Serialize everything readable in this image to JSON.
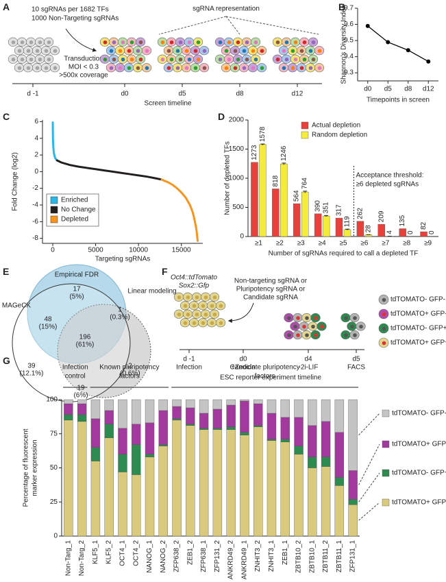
{
  "panel_labels": [
    "A",
    "B",
    "C",
    "D",
    "E",
    "F",
    "G"
  ],
  "screen_diagram": {
    "library": [
      "10 sgRNAs per 1682 TFs",
      "1000 Non-Targeting sgRNAs"
    ],
    "transduction": [
      "Transduction",
      "MOI < 0.3",
      ">500x coverage"
    ],
    "representation": "sgRNA representation",
    "timepoints": [
      "d -1",
      "d0",
      "d5",
      "d8",
      "d12"
    ],
    "timeline": "Screen timeline"
  },
  "venn": {
    "sets": [
      "Empirical FDR",
      "MAGeCK",
      "Linear modeling"
    ],
    "regions": [
      [
        "17",
        "(5%)"
      ],
      [
        "48",
        "(15%)"
      ],
      [
        "1",
        "(0.3%)"
      ],
      [
        "196",
        "(61%)"
      ],
      [
        "39",
        "(12.1%)"
      ],
      [
        "2",
        "(0.6%)"
      ],
      [
        "19",
        "(6%)"
      ]
    ]
  },
  "reporter_diagram": {
    "lines": [
      "Oct4::tdTomato",
      "Sox2::Gfp"
    ],
    "sgrnas": [
      "Non-targeting sgRNA or",
      "Pluripotency sgRNA or",
      "Candidate sgRNA"
    ],
    "timepoints": [
      [
        "d -1",
        "Infection"
      ],
      [
        "d0",
        "+Zeocin"
      ],
      [
        "d4",
        "-2i-LIF"
      ],
      [
        "d5",
        "FACS"
      ]
    ],
    "timeline": "ESC reporter experiment timeline",
    "legend": [
      {
        "name": "tdTOMATO- GFP-",
        "color": "#b3b3b3"
      },
      {
        "name": "tdTOMATO+ GFP-",
        "color": "#b04dac"
      },
      {
        "name": "tdTOMATO- GFP+",
        "color": "#2e8b4f"
      },
      {
        "name": "tdTOMATO+ GFP+",
        "color": "#e3d68e"
      }
    ]
  },
  "chart_data": [
    {
      "type": "line",
      "xlabel": "Timepoints in screen",
      "ylabel": "Shannon's Diversity Index",
      "categories": [
        "d0",
        "d5",
        "d8",
        "d12"
      ],
      "values": [
        9.59,
        9.49,
        9.44,
        9.37
      ],
      "color": "#000000",
      "ylim": [
        9.25,
        9.7
      ],
      "yticks": [
        9.3,
        9.4,
        9.5,
        9.6,
        9.7
      ]
    },
    {
      "type": "line",
      "xlabel": "Targeting sgRNAs",
      "ylabel": "Fold Change (log2)",
      "series": [
        {
          "name": "Enriched",
          "color": "#29b6e8",
          "x": [
            0,
            20,
            60,
            120,
            200,
            300,
            400,
            500
          ],
          "values": [
            5.9,
            4.0,
            3.0,
            2.3,
            1.9,
            1.6,
            1.45,
            1.35
          ]
        },
        {
          "name": "No Change",
          "color": "#231f20",
          "x": [
            500,
            1000,
            2000,
            3000,
            4000,
            5000,
            6000,
            7000,
            8000,
            9000,
            10000,
            11000,
            12000,
            12700
          ],
          "values": [
            1.35,
            1.1,
            0.8,
            0.6,
            0.45,
            0.3,
            0.15,
            0.0,
            -0.15,
            -0.3,
            -0.45,
            -0.6,
            -0.8,
            -0.95
          ]
        },
        {
          "name": "Depleted",
          "color": "#f7941d",
          "x": [
            12700,
            13500,
            14000,
            14500,
            15000,
            15500,
            16000,
            16300,
            16500,
            16700,
            16800,
            16900
          ],
          "values": [
            -0.95,
            -1.3,
            -1.6,
            -2.0,
            -2.5,
            -3.1,
            -4.0,
            -4.8,
            -5.6,
            -6.6,
            -7.3,
            -8.3
          ]
        }
      ],
      "xlim": [
        -1200,
        17500
      ],
      "xticks": [
        0,
        5000,
        10000,
        15000
      ],
      "ylim": [
        -8.6,
        6.2
      ],
      "yticks": [
        -8,
        -6,
        -4,
        -2,
        0,
        2,
        4,
        6
      ],
      "legend": "lower left"
    },
    {
      "type": "bar",
      "xlabel": "Number of sgRNAs required to call a depleted TF",
      "ylabel": "Number of depleted TFs",
      "categories": [
        "≥1",
        "≥2",
        "≥3",
        "≥4",
        "≥5",
        "≥6",
        "≥7",
        "≥8",
        "≥9"
      ],
      "series": [
        {
          "name": "Actual depletion",
          "color": "#e8413b",
          "values": [
            1273,
            818,
            564,
            390,
            317,
            262,
            209,
            135,
            82
          ]
        },
        {
          "name": "Random depletion",
          "color": "#f5eb3b",
          "values": [
            1578,
            1246,
            764,
            351,
            119,
            28,
            4,
            0,
            0
          ],
          "errors": [
            10,
            14,
            14,
            10,
            8,
            3,
            1,
            0,
            0
          ]
        }
      ],
      "ylim": [
        0,
        2000
      ],
      "yticks": [
        0,
        500,
        1000,
        1500,
        2000
      ],
      "legend": "upper right",
      "annotation": [
        "Acceptance threshold:",
        "≥6 depleted sgRNAs"
      ]
    },
    {
      "type": "stacked_bar",
      "ylabel": [
        "Percentage of fluorescent",
        "marker expression"
      ],
      "groups": [
        [
          "Infection",
          "control"
        ],
        [
          "Known pluripotency",
          "factors"
        ],
        [
          "Candidate pluripotency",
          "factors"
        ]
      ],
      "categories": [
        "Non-Targ_1",
        "Non-Targ_2",
        "KLF5_1",
        "KLF5_2",
        "OCT4_1",
        "OCT4_2",
        "NANOG_1",
        "NANOG_2",
        "ZFP638_2",
        "ZEB1_2",
        "ZFP638_1",
        "ZFP131_2",
        "ANKRD49_2",
        "ANKRD49_1",
        "ZNHIT3_2",
        "ZNHIT3_1",
        "ZEB1_1",
        "ZBTB10_2",
        "ZBTB10_1",
        "ZBTB11_2",
        "ZBTB11_1",
        "ZFP131_1"
      ],
      "series": [
        {
          "name": "tdTOMATO+ GFP+",
          "color": "#d9ca7d",
          "values": [
            85,
            84,
            55,
            72,
            47,
            45,
            58,
            66,
            85,
            81,
            78,
            78,
            78,
            74,
            80,
            70,
            69,
            60,
            50,
            51,
            37,
            23
          ]
        },
        {
          "name": "tdTOMATO- GFP+",
          "color": "#2e8b4f",
          "values": [
            4,
            5,
            10,
            10,
            13,
            22,
            2,
            1,
            1,
            1,
            1,
            1,
            2,
            2,
            1,
            1,
            2,
            6,
            8,
            7,
            6,
            4
          ]
        },
        {
          "name": "tdTOMATO+ GFP-",
          "color": "#a3399e",
          "values": [
            8,
            8,
            21,
            10,
            19,
            15,
            23,
            25,
            9,
            12,
            11,
            14,
            16,
            23,
            16,
            19,
            16,
            21,
            23,
            26,
            33,
            21
          ]
        },
        {
          "name": "tdTOMATO- GFP-",
          "color": "#c4c4c4",
          "values": [
            3,
            3,
            14,
            8,
            21,
            18,
            17,
            8,
            5,
            6,
            10,
            7,
            4,
            1,
            3,
            10,
            13,
            13,
            19,
            16,
            24,
            52
          ]
        }
      ],
      "ylim": [
        0,
        100
      ],
      "yticks": [
        0,
        25,
        50,
        75,
        100
      ],
      "legend": "right"
    }
  ]
}
